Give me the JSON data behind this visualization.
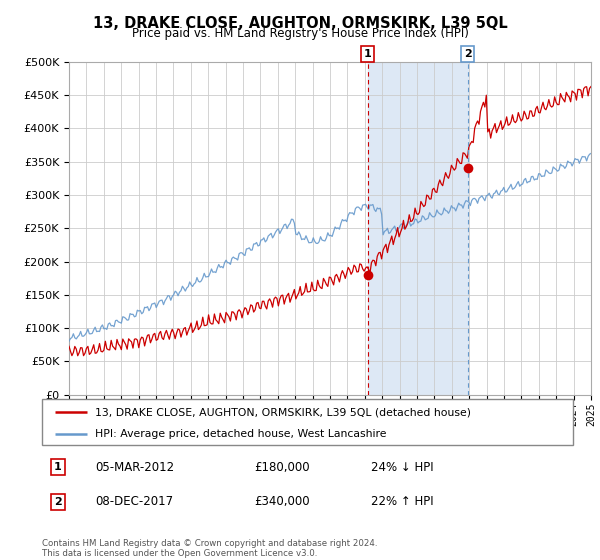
{
  "title": "13, DRAKE CLOSE, AUGHTON, ORMSKIRK, L39 5QL",
  "subtitle": "Price paid vs. HM Land Registry's House Price Index (HPI)",
  "legend_entries": [
    "13, DRAKE CLOSE, AUGHTON, ORMSKIRK, L39 5QL (detached house)",
    "HPI: Average price, detached house, West Lancashire"
  ],
  "sale1_date": "05-MAR-2012",
  "sale1_price": 180000,
  "sale1_label": "24% ↓ HPI",
  "sale2_date": "08-DEC-2017",
  "sale2_price": 340000,
  "sale2_label": "22% ↑ HPI",
  "footer": "Contains HM Land Registry data © Crown copyright and database right 2024.\nThis data is licensed under the Open Government Licence v3.0.",
  "hpi_color": "#6699cc",
  "price_color": "#cc0000",
  "sale1_vline_color": "#cc0000",
  "sale2_vline_color": "#6699cc",
  "span_color": "#dde8f5",
  "ylim": [
    0,
    500000
  ],
  "yticks": [
    0,
    50000,
    100000,
    150000,
    200000,
    250000,
    300000,
    350000,
    400000,
    450000,
    500000
  ],
  "xstart": 1995,
  "xend": 2025,
  "sale1_year": 2012.17,
  "sale2_year": 2017.92
}
